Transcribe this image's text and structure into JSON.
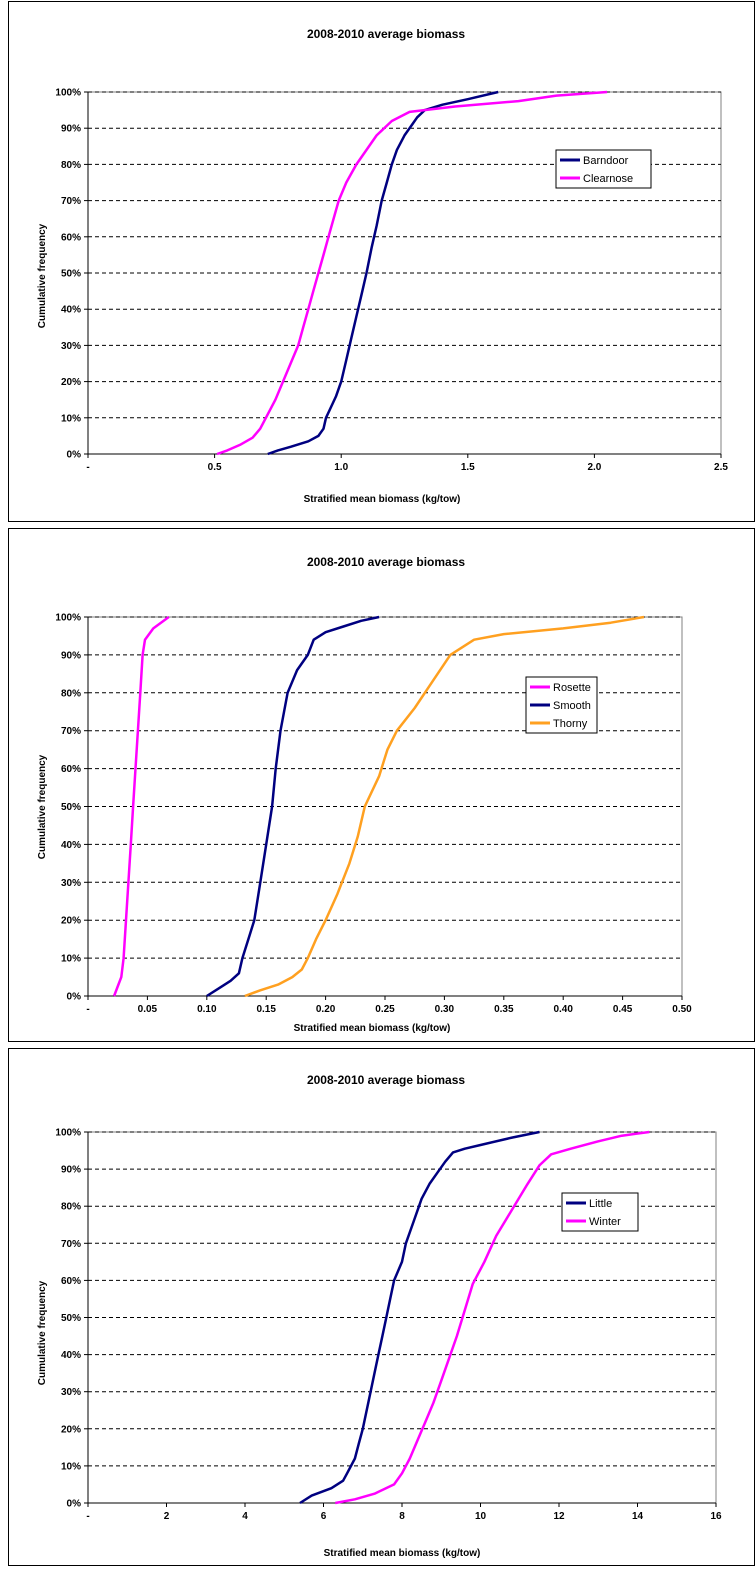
{
  "chart_data": [
    {
      "type": "line",
      "title": "2008-2010 average biomass",
      "xlabel": "Stratified mean biomass (kg/tow)",
      "ylabel": "Cumulative frequency",
      "xlim": [
        0,
        2.5
      ],
      "ylim": [
        0,
        1
      ],
      "xticks": [
        {
          "v": 0,
          "label": "-"
        },
        {
          "v": 0.5,
          "label": "0.5"
        },
        {
          "v": 1.0,
          "label": "1.0"
        },
        {
          "v": 1.5,
          "label": "1.5"
        },
        {
          "v": 2.0,
          "label": "2.0"
        },
        {
          "v": 2.5,
          "label": "2.5"
        }
      ],
      "yticks": [
        "0%",
        "10%",
        "20%",
        "30%",
        "40%",
        "50%",
        "60%",
        "70%",
        "80%",
        "90%",
        "100%"
      ],
      "grid": "horizontal dashed",
      "legend_position": "right",
      "series": [
        {
          "name": "Barndoor",
          "color": "#000080",
          "points": [
            [
              0.71,
              0
            ],
            [
              0.75,
              0.01
            ],
            [
              0.8,
              0.02
            ],
            [
              0.87,
              0.035
            ],
            [
              0.91,
              0.05
            ],
            [
              0.93,
              0.07
            ],
            [
              0.94,
              0.1
            ],
            [
              0.96,
              0.13
            ],
            [
              0.98,
              0.16
            ],
            [
              1.0,
              0.2
            ],
            [
              1.02,
              0.26
            ],
            [
              1.04,
              0.32
            ],
            [
              1.06,
              0.38
            ],
            [
              1.08,
              0.44
            ],
            [
              1.1,
              0.5
            ],
            [
              1.12,
              0.57
            ],
            [
              1.14,
              0.63
            ],
            [
              1.16,
              0.7
            ],
            [
              1.18,
              0.75
            ],
            [
              1.2,
              0.8
            ],
            [
              1.22,
              0.84
            ],
            [
              1.25,
              0.88
            ],
            [
              1.28,
              0.91
            ],
            [
              1.3,
              0.93
            ],
            [
              1.33,
              0.95
            ],
            [
              1.4,
              0.965
            ],
            [
              1.5,
              0.98
            ],
            [
              1.62,
              1.0
            ]
          ]
        },
        {
          "name": "Clearnose",
          "color": "#ff00ff",
          "points": [
            [
              0.51,
              0
            ],
            [
              0.55,
              0.01
            ],
            [
              0.6,
              0.025
            ],
            [
              0.65,
              0.045
            ],
            [
              0.68,
              0.07
            ],
            [
              0.71,
              0.11
            ],
            [
              0.74,
              0.15
            ],
            [
              0.77,
              0.2
            ],
            [
              0.8,
              0.25
            ],
            [
              0.83,
              0.3
            ],
            [
              0.85,
              0.35
            ],
            [
              0.87,
              0.4
            ],
            [
              0.89,
              0.45
            ],
            [
              0.91,
              0.5
            ],
            [
              0.93,
              0.55
            ],
            [
              0.95,
              0.6
            ],
            [
              0.97,
              0.65
            ],
            [
              0.99,
              0.7
            ],
            [
              1.02,
              0.75
            ],
            [
              1.06,
              0.8
            ],
            [
              1.1,
              0.84
            ],
            [
              1.14,
              0.88
            ],
            [
              1.2,
              0.92
            ],
            [
              1.27,
              0.945
            ],
            [
              1.45,
              0.96
            ],
            [
              1.7,
              0.975
            ],
            [
              1.85,
              0.99
            ],
            [
              2.05,
              1.0
            ]
          ]
        }
      ]
    },
    {
      "type": "line",
      "title": "2008-2010 average biomass",
      "xlabel": "Stratified mean biomass (kg/tow)",
      "ylabel": "Cumulative frequency",
      "xlim": [
        0,
        0.5
      ],
      "ylim": [
        0,
        1
      ],
      "xticks": [
        {
          "v": 0,
          "label": "-"
        },
        {
          "v": 0.05,
          "label": "0.05"
        },
        {
          "v": 0.1,
          "label": "0.10"
        },
        {
          "v": 0.15,
          "label": "0.15"
        },
        {
          "v": 0.2,
          "label": "0.20"
        },
        {
          "v": 0.25,
          "label": "0.25"
        },
        {
          "v": 0.3,
          "label": "0.30"
        },
        {
          "v": 0.35,
          "label": "0.35"
        },
        {
          "v": 0.4,
          "label": "0.40"
        },
        {
          "v": 0.45,
          "label": "0.45"
        },
        {
          "v": 0.5,
          "label": "0.50"
        }
      ],
      "yticks": [
        "0%",
        "10%",
        "20%",
        "30%",
        "40%",
        "50%",
        "60%",
        "70%",
        "80%",
        "90%",
        "100%"
      ],
      "grid": "horizontal dashed",
      "legend_position": "right",
      "series": [
        {
          "name": "Rosette",
          "color": "#ff00ff",
          "points": [
            [
              0.022,
              0
            ],
            [
              0.025,
              0.025
            ],
            [
              0.028,
              0.05
            ],
            [
              0.03,
              0.1
            ],
            [
              0.032,
              0.2
            ],
            [
              0.034,
              0.3
            ],
            [
              0.036,
              0.4
            ],
            [
              0.038,
              0.5
            ],
            [
              0.04,
              0.6
            ],
            [
              0.042,
              0.7
            ],
            [
              0.044,
              0.8
            ],
            [
              0.046,
              0.9
            ],
            [
              0.048,
              0.94
            ],
            [
              0.055,
              0.97
            ],
            [
              0.068,
              1.0
            ]
          ]
        },
        {
          "name": "Smooth",
          "color": "#000080",
          "points": [
            [
              0.1,
              0
            ],
            [
              0.11,
              0.02
            ],
            [
              0.12,
              0.04
            ],
            [
              0.127,
              0.06
            ],
            [
              0.13,
              0.1
            ],
            [
              0.135,
              0.15
            ],
            [
              0.14,
              0.2
            ],
            [
              0.145,
              0.3
            ],
            [
              0.15,
              0.4
            ],
            [
              0.155,
              0.5
            ],
            [
              0.158,
              0.6
            ],
            [
              0.162,
              0.7
            ],
            [
              0.168,
              0.8
            ],
            [
              0.176,
              0.86
            ],
            [
              0.185,
              0.9
            ],
            [
              0.19,
              0.94
            ],
            [
              0.2,
              0.96
            ],
            [
              0.215,
              0.975
            ],
            [
              0.23,
              0.99
            ],
            [
              0.245,
              1.0
            ]
          ]
        },
        {
          "name": "Thorny",
          "color": "#ffa020",
          "points": [
            [
              0.132,
              0
            ],
            [
              0.145,
              0.015
            ],
            [
              0.16,
              0.03
            ],
            [
              0.172,
              0.05
            ],
            [
              0.18,
              0.07
            ],
            [
              0.185,
              0.1
            ],
            [
              0.192,
              0.15
            ],
            [
              0.2,
              0.2
            ],
            [
              0.21,
              0.27
            ],
            [
              0.22,
              0.35
            ],
            [
              0.227,
              0.42
            ],
            [
              0.233,
              0.5
            ],
            [
              0.245,
              0.58
            ],
            [
              0.252,
              0.65
            ],
            [
              0.26,
              0.7
            ],
            [
              0.275,
              0.76
            ],
            [
              0.29,
              0.83
            ],
            [
              0.305,
              0.9
            ],
            [
              0.325,
              0.94
            ],
            [
              0.35,
              0.955
            ],
            [
              0.4,
              0.97
            ],
            [
              0.44,
              0.985
            ],
            [
              0.468,
              1.0
            ]
          ]
        }
      ]
    },
    {
      "type": "line",
      "title": "2008-2010 average biomass",
      "xlabel": "Stratified mean biomass (kg/tow)",
      "ylabel": "Cumulative frequency",
      "xlim": [
        0,
        16
      ],
      "ylim": [
        0,
        1
      ],
      "xticks": [
        {
          "v": 0,
          "label": "-"
        },
        {
          "v": 2,
          "label": "2"
        },
        {
          "v": 4,
          "label": "4"
        },
        {
          "v": 6,
          "label": "6"
        },
        {
          "v": 8,
          "label": "8"
        },
        {
          "v": 10,
          "label": "10"
        },
        {
          "v": 12,
          "label": "12"
        },
        {
          "v": 14,
          "label": "14"
        },
        {
          "v": 16,
          "label": "16"
        }
      ],
      "yticks": [
        "0%",
        "10%",
        "20%",
        "30%",
        "40%",
        "50%",
        "60%",
        "70%",
        "80%",
        "90%",
        "100%"
      ],
      "grid": "horizontal dashed",
      "legend_position": "right",
      "series": [
        {
          "name": "Little",
          "color": "#000080",
          "points": [
            [
              5.4,
              0
            ],
            [
              5.7,
              0.02
            ],
            [
              6.2,
              0.04
            ],
            [
              6.5,
              0.06
            ],
            [
              6.6,
              0.08
            ],
            [
              6.8,
              0.12
            ],
            [
              6.9,
              0.16
            ],
            [
              7.0,
              0.2
            ],
            [
              7.1,
              0.25
            ],
            [
              7.2,
              0.3
            ],
            [
              7.3,
              0.35
            ],
            [
              7.4,
              0.4
            ],
            [
              7.5,
              0.45
            ],
            [
              7.6,
              0.5
            ],
            [
              7.7,
              0.55
            ],
            [
              7.8,
              0.6
            ],
            [
              8.0,
              0.65
            ],
            [
              8.1,
              0.7
            ],
            [
              8.3,
              0.76
            ],
            [
              8.5,
              0.82
            ],
            [
              8.7,
              0.86
            ],
            [
              8.9,
              0.89
            ],
            [
              9.1,
              0.92
            ],
            [
              9.3,
              0.945
            ],
            [
              9.6,
              0.955
            ],
            [
              10.0,
              0.965
            ],
            [
              10.8,
              0.985
            ],
            [
              11.5,
              1.0
            ]
          ]
        },
        {
          "name": "Winter",
          "color": "#ff00ff",
          "points": [
            [
              6.3,
              0
            ],
            [
              6.8,
              0.01
            ],
            [
              7.3,
              0.025
            ],
            [
              7.8,
              0.05
            ],
            [
              8.0,
              0.08
            ],
            [
              8.2,
              0.12
            ],
            [
              8.4,
              0.17
            ],
            [
              8.6,
              0.22
            ],
            [
              8.8,
              0.27
            ],
            [
              9.0,
              0.33
            ],
            [
              9.2,
              0.39
            ],
            [
              9.4,
              0.45
            ],
            [
              9.6,
              0.52
            ],
            [
              9.8,
              0.59
            ],
            [
              10.1,
              0.65
            ],
            [
              10.4,
              0.72
            ],
            [
              10.8,
              0.79
            ],
            [
              11.2,
              0.86
            ],
            [
              11.5,
              0.91
            ],
            [
              11.8,
              0.94
            ],
            [
              12.3,
              0.955
            ],
            [
              13.0,
              0.975
            ],
            [
              13.6,
              0.99
            ],
            [
              14.3,
              1.0
            ]
          ]
        }
      ]
    }
  ]
}
